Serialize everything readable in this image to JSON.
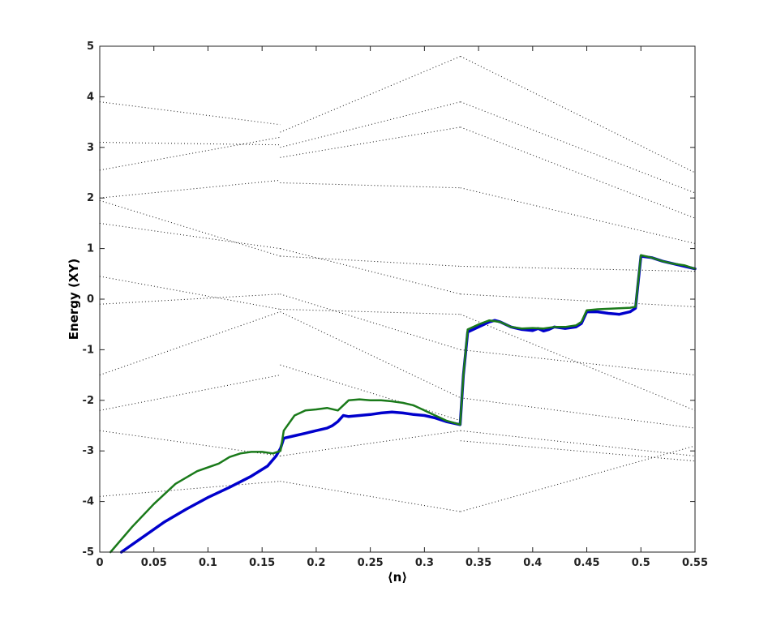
{
  "chart_data": {
    "type": "line",
    "title": "",
    "xlabel": "⟨n⟩",
    "ylabel": "Energy (XY)",
    "xlim": [
      0,
      0.55
    ],
    "ylim": [
      -5,
      5
    ],
    "grid": false,
    "xticks": [
      {
        "value": 0,
        "label": "0"
      },
      {
        "value": 0.05,
        "label": "0.05"
      },
      {
        "value": 0.1,
        "label": "0.1"
      },
      {
        "value": 0.15,
        "label": "0.15"
      },
      {
        "value": 0.2,
        "label": "0.2"
      },
      {
        "value": 0.25,
        "label": "0.25"
      },
      {
        "value": 0.3,
        "label": "0.3"
      },
      {
        "value": 0.35,
        "label": "0.35"
      },
      {
        "value": 0.4,
        "label": "0.4"
      },
      {
        "value": 0.45,
        "label": "0.45"
      },
      {
        "value": 0.5,
        "label": "0.5"
      },
      {
        "value": 0.55,
        "label": "0.55"
      }
    ],
    "yticks": [
      {
        "value": -5,
        "label": "-5"
      },
      {
        "value": -4,
        "label": "-4"
      },
      {
        "value": -3,
        "label": "-3"
      },
      {
        "value": -2,
        "label": "-2"
      },
      {
        "value": -1,
        "label": "-1"
      },
      {
        "value": 0,
        "label": "0"
      },
      {
        "value": 1,
        "label": "1"
      },
      {
        "value": 2,
        "label": "2"
      },
      {
        "value": 3,
        "label": "3"
      },
      {
        "value": 4,
        "label": "4"
      },
      {
        "value": 5,
        "label": "5"
      }
    ],
    "spectrum_bands": [
      {
        "x": [
          0.0,
          0.1667
        ],
        "y": [
          3.9,
          3.45
        ]
      },
      {
        "x": [
          0.1667,
          0.3333
        ],
        "y": [
          3.3,
          4.8
        ]
      },
      {
        "x": [
          0.3333,
          0.55
        ],
        "y": [
          4.8,
          2.5
        ]
      },
      {
        "x": [
          0.0,
          0.1667
        ],
        "y": [
          3.1,
          3.05
        ]
      },
      {
        "x": [
          0.1667,
          0.3333
        ],
        "y": [
          3.0,
          3.9
        ]
      },
      {
        "x": [
          0.3333,
          0.55
        ],
        "y": [
          3.9,
          2.1
        ]
      },
      {
        "x": [
          0.0,
          0.1667
        ],
        "y": [
          2.55,
          3.2
        ]
      },
      {
        "x": [
          0.1667,
          0.3333
        ],
        "y": [
          2.8,
          3.4
        ]
      },
      {
        "x": [
          0.3333,
          0.55
        ],
        "y": [
          3.4,
          1.6
        ]
      },
      {
        "x": [
          0.0,
          0.1667
        ],
        "y": [
          2.0,
          2.35
        ]
      },
      {
        "x": [
          0.1667,
          0.3333
        ],
        "y": [
          2.3,
          2.2
        ]
      },
      {
        "x": [
          0.3333,
          0.55
        ],
        "y": [
          2.2,
          1.1
        ]
      },
      {
        "x": [
          0.0,
          0.1667
        ],
        "y": [
          1.95,
          0.85
        ]
      },
      {
        "x": [
          0.1667,
          0.3333
        ],
        "y": [
          0.85,
          0.65
        ]
      },
      {
        "x": [
          0.3333,
          0.55
        ],
        "y": [
          0.65,
          0.55
        ]
      },
      {
        "x": [
          0.0,
          0.1667
        ],
        "y": [
          1.5,
          1.0
        ]
      },
      {
        "x": [
          0.1667,
          0.3333
        ],
        "y": [
          1.0,
          0.1
        ]
      },
      {
        "x": [
          0.3333,
          0.55
        ],
        "y": [
          0.1,
          -0.15
        ]
      },
      {
        "x": [
          0.0,
          0.1667
        ],
        "y": [
          0.45,
          -0.2
        ]
      },
      {
        "x": [
          0.1667,
          0.3333
        ],
        "y": [
          -0.2,
          -0.3
        ]
      },
      {
        "x": [
          0.3333,
          0.55
        ],
        "y": [
          -0.3,
          -2.2
        ]
      },
      {
        "x": [
          0.0,
          0.1667
        ],
        "y": [
          -0.1,
          0.1
        ]
      },
      {
        "x": [
          0.1667,
          0.3333
        ],
        "y": [
          0.1,
          -1.0
        ]
      },
      {
        "x": [
          0.3333,
          0.55
        ],
        "y": [
          -1.0,
          -1.5
        ]
      },
      {
        "x": [
          0.0,
          0.1667
        ],
        "y": [
          -1.5,
          -0.25
        ]
      },
      {
        "x": [
          0.1667,
          0.3333
        ],
        "y": [
          -0.25,
          -1.95
        ]
      },
      {
        "x": [
          0.3333,
          0.55
        ],
        "y": [
          -1.95,
          -2.55
        ]
      },
      {
        "x": [
          0.0,
          0.1667
        ],
        "y": [
          -2.2,
          -1.5
        ]
      },
      {
        "x": [
          0.1667,
          0.3333
        ],
        "y": [
          -1.3,
          -2.4
        ]
      },
      {
        "x": [
          0.3333,
          0.55
        ],
        "y": [
          -2.6,
          -3.1
        ]
      },
      {
        "x": [
          0.0,
          0.1667
        ],
        "y": [
          -2.6,
          -3.1
        ]
      },
      {
        "x": [
          0.1667,
          0.3333
        ],
        "y": [
          -3.1,
          -2.6
        ]
      },
      {
        "x": [
          0.3333,
          0.55
        ],
        "y": [
          -2.8,
          -3.2
        ]
      },
      {
        "x": [
          0.0,
          0.1667
        ],
        "y": [
          -3.9,
          -3.6
        ]
      },
      {
        "x": [
          0.1667,
          0.3333
        ],
        "y": [
          -3.6,
          -4.2
        ]
      },
      {
        "x": [
          0.3333,
          0.55
        ],
        "y": [
          -4.2,
          -2.9
        ]
      }
    ],
    "series": [
      {
        "color": "#0000cc",
        "x": [
          0.02,
          0.04,
          0.06,
          0.08,
          0.1,
          0.12,
          0.14,
          0.155,
          0.163,
          0.167,
          0.17,
          0.18,
          0.19,
          0.2,
          0.21,
          0.215,
          0.22,
          0.225,
          0.23,
          0.24,
          0.25,
          0.26,
          0.27,
          0.28,
          0.29,
          0.3,
          0.31,
          0.32,
          0.333,
          0.336,
          0.34,
          0.35,
          0.36,
          0.365,
          0.37,
          0.38,
          0.39,
          0.4,
          0.405,
          0.41,
          0.415,
          0.42,
          0.43,
          0.44,
          0.445,
          0.45,
          0.46,
          0.47,
          0.48,
          0.49,
          0.495,
          0.5,
          0.51,
          0.52,
          0.53,
          0.54,
          0.55
        ],
        "y": [
          -5.0,
          -4.7,
          -4.4,
          -4.15,
          -3.92,
          -3.72,
          -3.5,
          -3.3,
          -3.1,
          -2.95,
          -2.75,
          -2.7,
          -2.65,
          -2.6,
          -2.55,
          -2.5,
          -2.42,
          -2.3,
          -2.32,
          -2.3,
          -2.28,
          -2.25,
          -2.23,
          -2.25,
          -2.28,
          -2.3,
          -2.35,
          -2.42,
          -2.48,
          -1.5,
          -0.65,
          -0.55,
          -0.45,
          -0.42,
          -0.45,
          -0.55,
          -0.6,
          -0.62,
          -0.58,
          -0.63,
          -0.6,
          -0.55,
          -0.58,
          -0.55,
          -0.48,
          -0.25,
          -0.25,
          -0.28,
          -0.3,
          -0.25,
          -0.18,
          0.85,
          0.82,
          0.75,
          0.7,
          0.65,
          0.6
        ]
      },
      {
        "color": "#1a7a1a",
        "x": [
          0.01,
          0.03,
          0.05,
          0.07,
          0.09,
          0.11,
          0.12,
          0.13,
          0.14,
          0.15,
          0.16,
          0.167,
          0.17,
          0.18,
          0.19,
          0.2,
          0.21,
          0.22,
          0.23,
          0.24,
          0.25,
          0.26,
          0.27,
          0.28,
          0.29,
          0.3,
          0.31,
          0.32,
          0.333,
          0.336,
          0.34,
          0.35,
          0.36,
          0.37,
          0.38,
          0.39,
          0.4,
          0.41,
          0.42,
          0.43,
          0.44,
          0.445,
          0.45,
          0.46,
          0.47,
          0.48,
          0.49,
          0.495,
          0.5,
          0.51,
          0.52,
          0.53,
          0.54,
          0.55
        ],
        "y": [
          -5.0,
          -4.5,
          -4.05,
          -3.65,
          -3.4,
          -3.25,
          -3.12,
          -3.05,
          -3.02,
          -3.02,
          -3.05,
          -3.0,
          -2.6,
          -2.3,
          -2.2,
          -2.18,
          -2.15,
          -2.2,
          -2.0,
          -1.98,
          -2.0,
          -2.0,
          -2.02,
          -2.05,
          -2.1,
          -2.2,
          -2.3,
          -2.4,
          -2.48,
          -1.5,
          -0.6,
          -0.5,
          -0.42,
          -0.45,
          -0.55,
          -0.58,
          -0.57,
          -0.58,
          -0.55,
          -0.55,
          -0.52,
          -0.45,
          -0.22,
          -0.2,
          -0.19,
          -0.18,
          -0.17,
          -0.15,
          0.87,
          0.82,
          0.75,
          0.7,
          0.67,
          0.6
        ]
      }
    ]
  }
}
